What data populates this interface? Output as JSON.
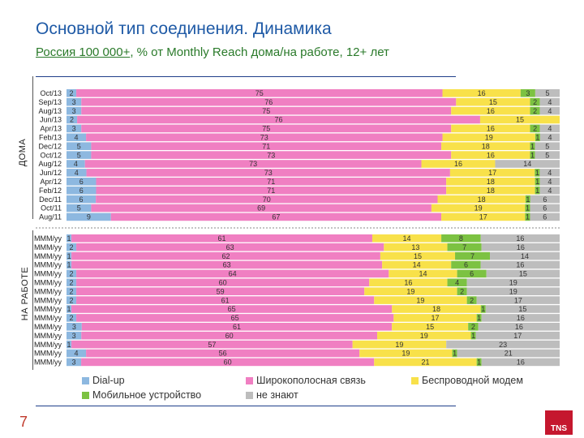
{
  "title": "Основной тип соединения. Динамика",
  "subtitle_underlined": "Россия 100 000+",
  "subtitle_rest": ", % от Monthly Reach дома/на работе, 12+ лет",
  "page_number": "7",
  "logo_text": "TNS",
  "colors": {
    "dialup": "#8db8e0",
    "broadband": "#f07fc2",
    "wireless": "#f8e14a",
    "mobile": "#7cc242",
    "unknown": "#bdbdbd",
    "title": "#1f5aa6",
    "subtitle": "#2a7a2a"
  },
  "legend": [
    {
      "name": "Dial-up",
      "color": "#8db8e0"
    },
    {
      "name": "Широкополосная связь",
      "color": "#f07fc2"
    },
    {
      "name": "Беспроводной модем",
      "color": "#f8e14a"
    },
    {
      "name": "Мобильное устройство",
      "color": "#7cc242"
    },
    {
      "name": "не знают",
      "color": "#bdbdbd"
    }
  ],
  "chart_data": [
    {
      "type": "bar",
      "stacked": true,
      "orientation": "horizontal",
      "section_label": "ДОМА",
      "categories": [
        "Oct/13",
        "Sep/13",
        "Aug/13",
        "Jun/13",
        "Apr/13",
        "Feb/13",
        "Dec/12",
        "Oct/12",
        "Aug/12",
        "Jun/12",
        "Apr/12",
        "Feb/12",
        "Dec/11",
        "Oct/11",
        "Aug/11"
      ],
      "series": [
        {
          "name": "Dial-up",
          "values": [
            2,
            3,
            3,
            2,
            3,
            4,
            5,
            5,
            4,
            4,
            6,
            6,
            6,
            5,
            9
          ]
        },
        {
          "name": "Широкополосная связь",
          "values": [
            75,
            76,
            75,
            76,
            75,
            73,
            71,
            73,
            73,
            73,
            71,
            71,
            70,
            69,
            67
          ]
        },
        {
          "name": "Беспроводной модем",
          "values": [
            16,
            15,
            16,
            15,
            16,
            19,
            18,
            16,
            16,
            17,
            18,
            18,
            18,
            19,
            17
          ]
        },
        {
          "name": "Мобильное устройство",
          "values": [
            3,
            2,
            2,
            0,
            2,
            1,
            1,
            1,
            0,
            1,
            1,
            1,
            1,
            1,
            1
          ]
        },
        {
          "name": "не знают",
          "values": [
            5,
            4,
            4,
            0,
            4,
            4,
            5,
            5,
            14,
            4,
            4,
            4,
            6,
            6,
            6
          ]
        }
      ]
    },
    {
      "type": "bar",
      "stacked": true,
      "orientation": "horizontal",
      "section_label": "НА РАБОТЕ",
      "categories": [
        "MMM/yy",
        "MMM/yy",
        "MMM/yy",
        "MMM/yy",
        "MMM/yy",
        "MMM/yy",
        "MMM/yy",
        "MMM/yy",
        "MMM/yy",
        "MMM/yy",
        "MMM/yy",
        "MMM/yy",
        "MMM/yy",
        "MMM/yy",
        "MMM/yy"
      ],
      "series": [
        {
          "name": "Dial-up",
          "values": [
            1,
            2,
            1,
            1,
            2,
            2,
            2,
            2,
            1,
            2,
            3,
            3,
            1,
            4,
            3
          ]
        },
        {
          "name": "Широкополосная связь",
          "values": [
            61,
            63,
            62,
            63,
            64,
            60,
            59,
            61,
            65,
            65,
            61,
            60,
            57,
            56,
            60
          ]
        },
        {
          "name": "Беспроводной модем",
          "values": [
            14,
            13,
            15,
            14,
            14,
            16,
            19,
            19,
            18,
            17,
            15,
            19,
            19,
            19,
            21
          ]
        },
        {
          "name": "Мобильное устройство",
          "values": [
            8,
            7,
            7,
            6,
            6,
            4,
            2,
            2,
            1,
            1,
            2,
            1,
            0,
            1,
            1
          ]
        },
        {
          "name": "не знают",
          "values": [
            16,
            16,
            14,
            16,
            15,
            19,
            19,
            17,
            15,
            16,
            16,
            17,
            23,
            21,
            16
          ]
        }
      ]
    }
  ]
}
